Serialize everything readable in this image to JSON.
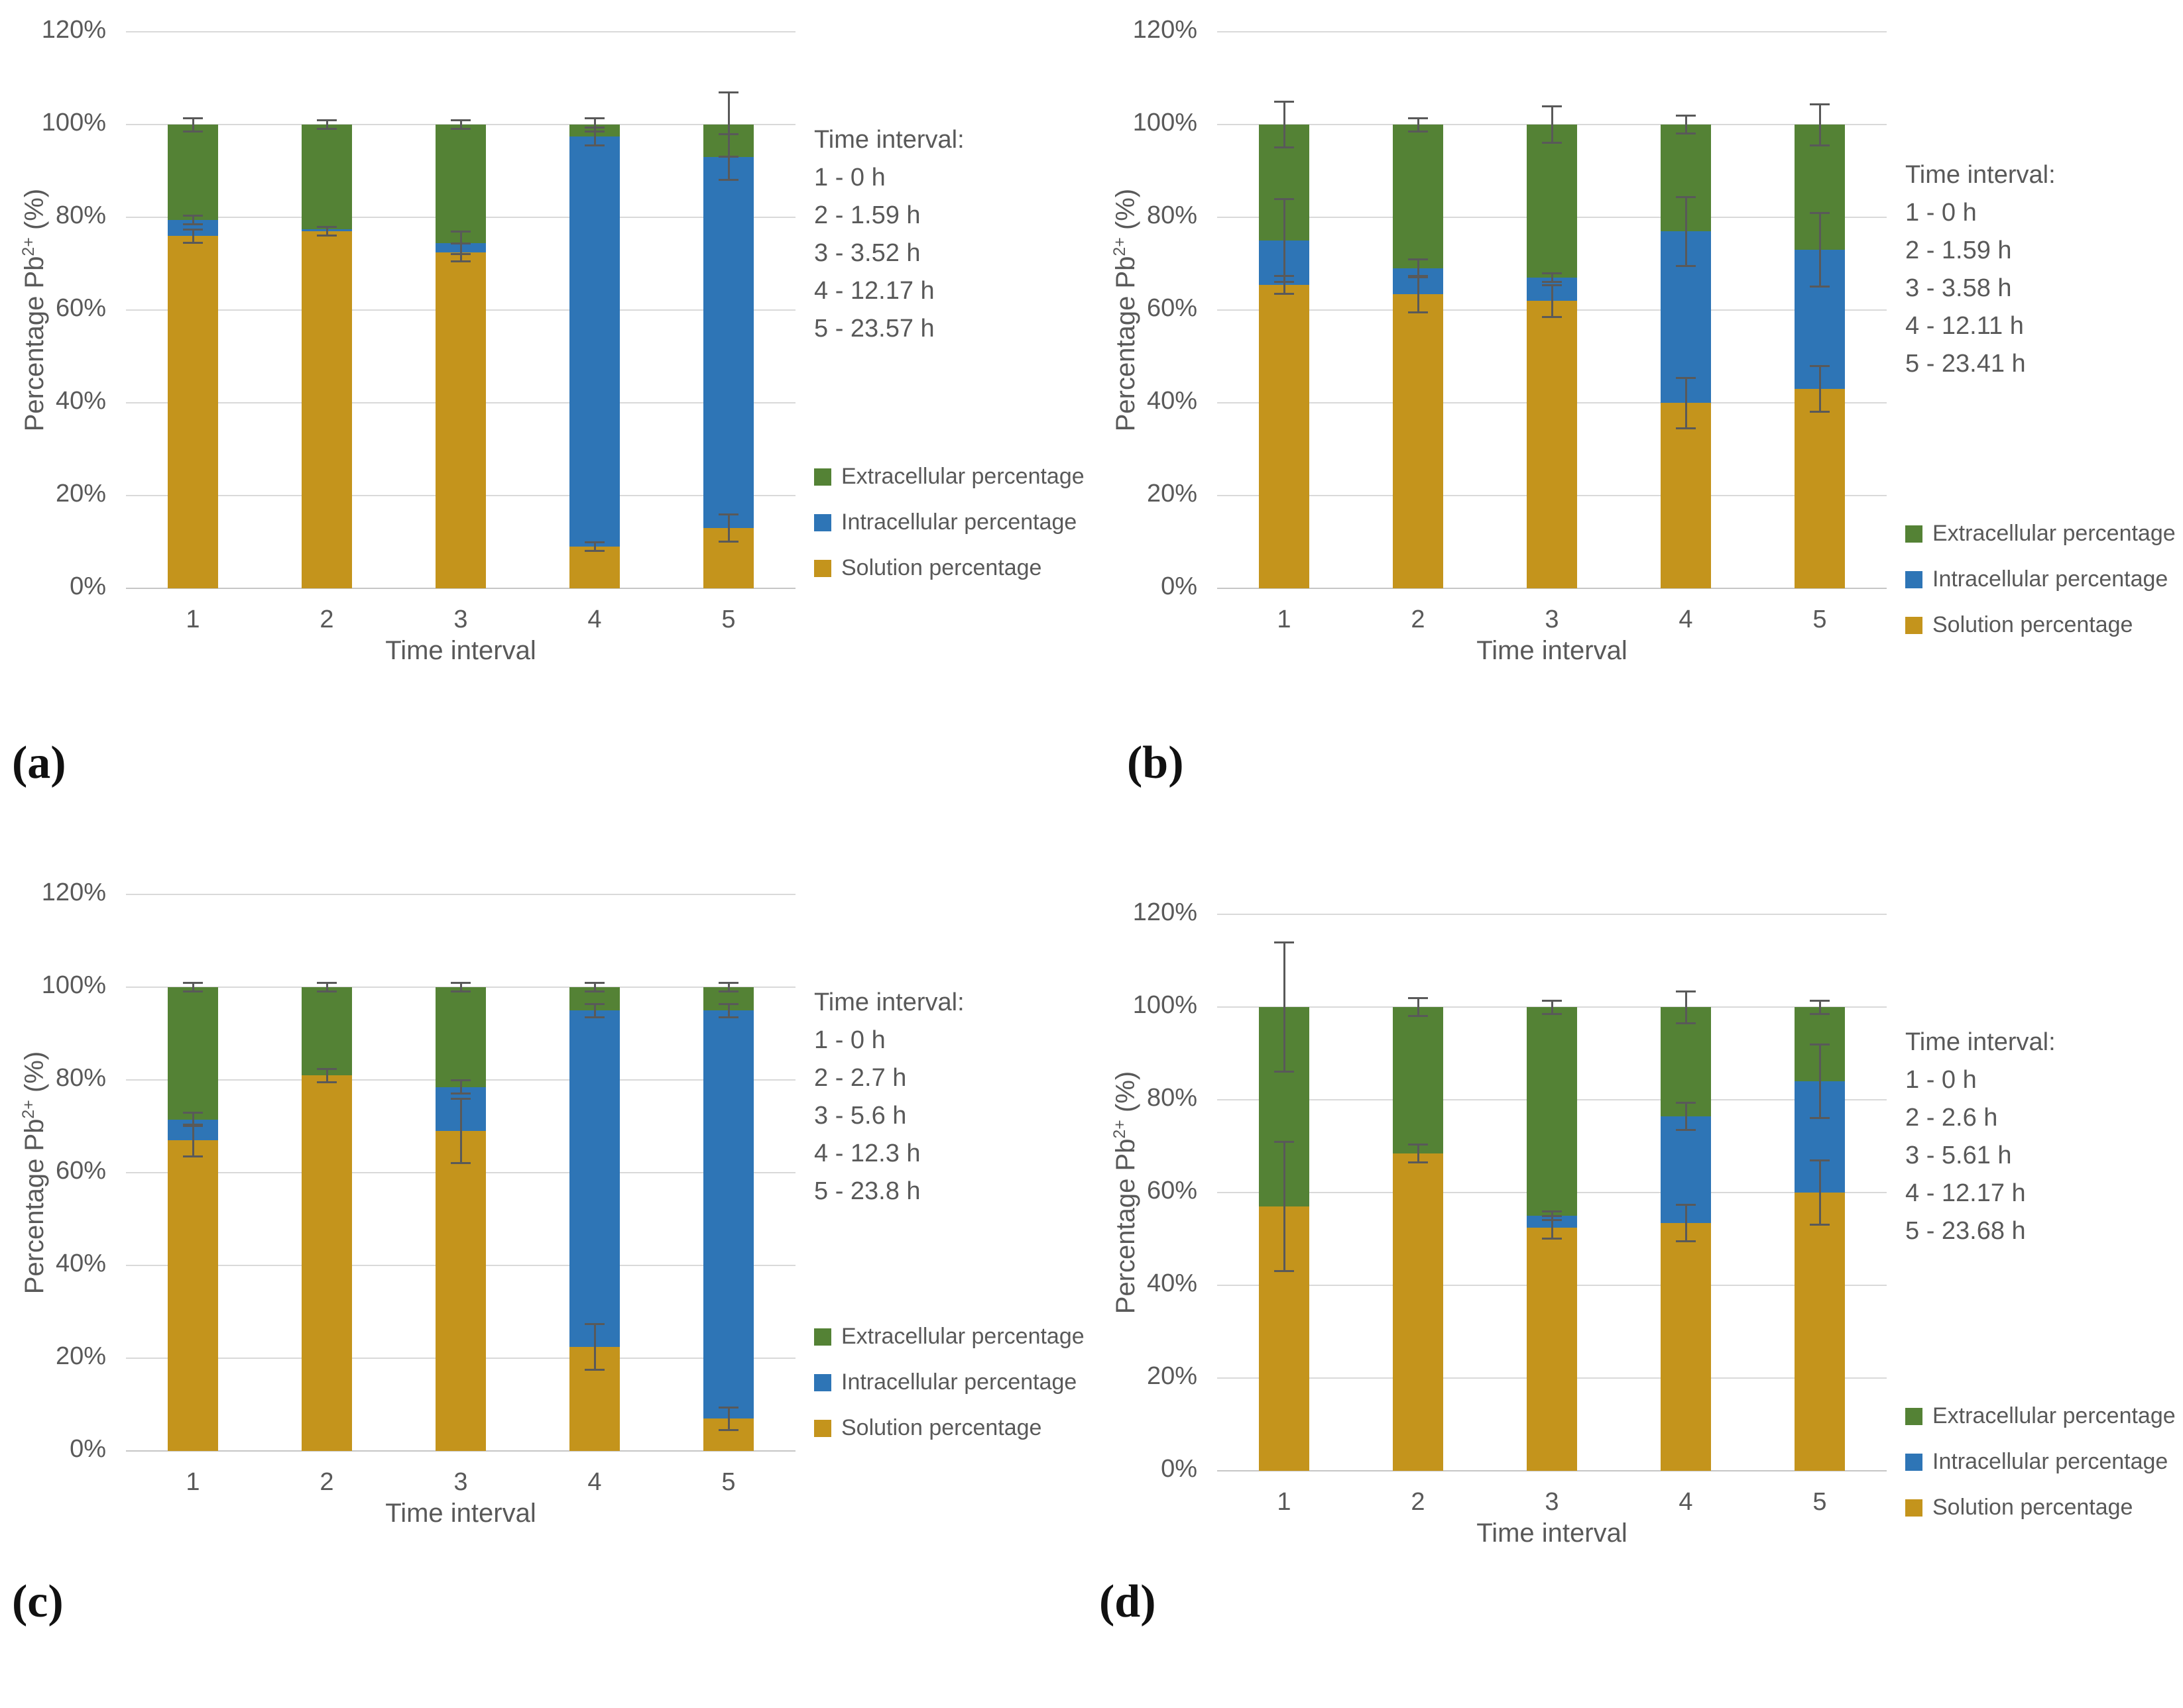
{
  "figure_colors": {
    "extracellular": "#548235",
    "intracellular": "#2e75b6",
    "solution": "#c4941c",
    "text": "#595959",
    "gridline": "#d9d9d9",
    "error_bar": "#595959"
  },
  "chart_data": [
    {
      "panel_letter": "(a)",
      "type": "bar",
      "stacked": true,
      "grid": true,
      "legend_position": "right",
      "xlabel": "Time interval",
      "ylabel": {
        "pre": "Percentage Pb",
        "sup": "2+",
        "post": " (%)"
      },
      "ylim": [
        0,
        120
      ],
      "yticks": [
        "0%",
        "20%",
        "40%",
        "60%",
        "80%",
        "100%",
        "120%"
      ],
      "categories": [
        "1",
        "2",
        "3",
        "4",
        "5"
      ],
      "series": [
        {
          "name": "Solution percentage",
          "color": "#c4941c",
          "values": [
            76,
            77,
            72.5,
            9,
            13
          ]
        },
        {
          "name": "Intracellular percentage",
          "color": "#2e75b6",
          "values": [
            3.5,
            0.5,
            2,
            88.5,
            80
          ]
        },
        {
          "name": "Extracellular percentage",
          "color": "#548235",
          "values": [
            20.5,
            22.5,
            25.5,
            2.5,
            7
          ]
        }
      ],
      "error_bars": [
        {
          "category": "1",
          "at": 76,
          "minus": 1.5,
          "plus": 1.5
        },
        {
          "category": "1",
          "at": 79.5,
          "minus": 1,
          "plus": 1
        },
        {
          "category": "1",
          "at": 100,
          "minus": 1.5,
          "plus": 1.5
        },
        {
          "category": "2",
          "at": 77,
          "minus": 1,
          "plus": 1
        },
        {
          "category": "2",
          "at": 100,
          "minus": 1,
          "plus": 1
        },
        {
          "category": "3",
          "at": 72.5,
          "minus": 2,
          "plus": 2
        },
        {
          "category": "3",
          "at": 74.5,
          "minus": 2.5,
          "plus": 2.5
        },
        {
          "category": "3",
          "at": 100,
          "minus": 1,
          "plus": 1
        },
        {
          "category": "4",
          "at": 9,
          "minus": 1,
          "plus": 1
        },
        {
          "category": "4",
          "at": 97.5,
          "minus": 2,
          "plus": 2
        },
        {
          "category": "4",
          "at": 100,
          "minus": 1.5,
          "plus": 1.5
        },
        {
          "category": "5",
          "at": 13,
          "minus": 3,
          "plus": 3
        },
        {
          "category": "5",
          "at": 93,
          "minus": 5,
          "plus": 5
        },
        {
          "category": "5",
          "at": 100,
          "minus": 7,
          "plus": 7
        }
      ],
      "note": {
        "title": "Time interval:",
        "lines": [
          "1 - 0 h",
          "2 - 1.59 h",
          "3 - 3.52 h",
          "4 - 12.17 h",
          "5 - 23.57 h"
        ]
      },
      "legend": [
        "Extracellular percentage",
        "Intracellular percentage",
        "Solution percentage"
      ]
    },
    {
      "panel_letter": "(b)",
      "type": "bar",
      "stacked": true,
      "grid": true,
      "legend_position": "right",
      "xlabel": "Time interval",
      "ylabel": {
        "pre": "Percentage Pb",
        "sup": "2+",
        "post": " (%)"
      },
      "ylim": [
        0,
        120
      ],
      "yticks": [
        "0%",
        "20%",
        "40%",
        "60%",
        "80%",
        "100%",
        "120%"
      ],
      "categories": [
        "1",
        "2",
        "3",
        "4",
        "5"
      ],
      "series": [
        {
          "name": "Solution percentage",
          "color": "#c4941c",
          "values": [
            65.5,
            63.5,
            62,
            40,
            43
          ]
        },
        {
          "name": "Intracellular percentage",
          "color": "#2e75b6",
          "values": [
            9.5,
            5.5,
            5,
            37,
            30
          ]
        },
        {
          "name": "Extracellular percentage",
          "color": "#548235",
          "values": [
            25,
            31,
            33,
            23,
            27
          ]
        }
      ],
      "error_bars": [
        {
          "category": "1",
          "at": 65.5,
          "minus": 2,
          "plus": 2
        },
        {
          "category": "1",
          "at": 75,
          "minus": 9,
          "plus": 9
        },
        {
          "category": "1",
          "at": 100,
          "minus": 5,
          "plus": 5
        },
        {
          "category": "2",
          "at": 63.5,
          "minus": 4,
          "plus": 4
        },
        {
          "category": "2",
          "at": 69,
          "minus": 2,
          "plus": 2
        },
        {
          "category": "2",
          "at": 100,
          "minus": 1.5,
          "plus": 1.5
        },
        {
          "category": "3",
          "at": 62,
          "minus": 3.5,
          "plus": 3.5
        },
        {
          "category": "3",
          "at": 67,
          "minus": 1,
          "plus": 1
        },
        {
          "category": "3",
          "at": 100,
          "minus": 4,
          "plus": 4
        },
        {
          "category": "4",
          "at": 40,
          "minus": 5.5,
          "plus": 5.5
        },
        {
          "category": "4",
          "at": 77,
          "minus": 7.5,
          "plus": 7.5
        },
        {
          "category": "4",
          "at": 100,
          "minus": 2,
          "plus": 2
        },
        {
          "category": "5",
          "at": 43,
          "minus": 5,
          "plus": 5
        },
        {
          "category": "5",
          "at": 73,
          "minus": 8,
          "plus": 8
        },
        {
          "category": "5",
          "at": 100,
          "minus": 4.5,
          "plus": 4.5
        }
      ],
      "note": {
        "title": "Time interval:",
        "lines": [
          "1 - 0 h",
          "2 - 1.59 h",
          "3 - 3.58 h",
          "4 - 12.11 h",
          "5 - 23.41 h"
        ]
      },
      "legend": [
        "Extracellular percentage",
        "Intracellular percentage",
        "Solution percentage"
      ]
    },
    {
      "panel_letter": "(c)",
      "type": "bar",
      "stacked": true,
      "grid": true,
      "legend_position": "right",
      "xlabel": "Time interval",
      "ylabel": {
        "pre": "Percentage Pb",
        "sup": "2+",
        "post": " (%)"
      },
      "ylim": [
        0,
        120
      ],
      "yticks": [
        "0%",
        "20%",
        "40%",
        "60%",
        "80%",
        "100%",
        "120%"
      ],
      "categories": [
        "1",
        "2",
        "3",
        "4",
        "5"
      ],
      "series": [
        {
          "name": "Solution percentage",
          "color": "#c4941c",
          "values": [
            67,
            81,
            69,
            22.5,
            7
          ]
        },
        {
          "name": "Intracellular percentage",
          "color": "#2e75b6",
          "values": [
            4.5,
            0,
            9.5,
            72.5,
            88
          ]
        },
        {
          "name": "Extracellular percentage",
          "color": "#548235",
          "values": [
            28.5,
            19,
            21.5,
            5,
            5
          ]
        }
      ],
      "error_bars": [
        {
          "category": "1",
          "at": 67,
          "minus": 3.5,
          "plus": 3.5
        },
        {
          "category": "1",
          "at": 71.5,
          "minus": 1.5,
          "plus": 1.5
        },
        {
          "category": "1",
          "at": 100,
          "minus": 1,
          "plus": 1
        },
        {
          "category": "2",
          "at": 81,
          "minus": 1.5,
          "plus": 1.5
        },
        {
          "category": "2",
          "at": 100,
          "minus": 1,
          "plus": 1
        },
        {
          "category": "3",
          "at": 69,
          "minus": 7,
          "plus": 7
        },
        {
          "category": "3",
          "at": 78.5,
          "minus": 1.5,
          "plus": 1.5
        },
        {
          "category": "3",
          "at": 100,
          "minus": 1,
          "plus": 1
        },
        {
          "category": "4",
          "at": 22.5,
          "minus": 5,
          "plus": 5
        },
        {
          "category": "4",
          "at": 95,
          "minus": 1.5,
          "plus": 1.5
        },
        {
          "category": "4",
          "at": 100,
          "minus": 1,
          "plus": 1
        },
        {
          "category": "5",
          "at": 7,
          "minus": 2.5,
          "plus": 2.5
        },
        {
          "category": "5",
          "at": 95,
          "minus": 1.5,
          "plus": 1.5
        },
        {
          "category": "5",
          "at": 100,
          "minus": 1,
          "plus": 1
        }
      ],
      "note": {
        "title": "Time interval:",
        "lines": [
          "1 - 0 h",
          "2 - 2.7 h",
          "3 - 5.6 h",
          "4 - 12.3 h",
          "5 - 23.8 h"
        ]
      },
      "legend": [
        "Extracellular percentage",
        "Intracellular percentage",
        "Solution percentage"
      ]
    },
    {
      "panel_letter": "(d)",
      "type": "bar",
      "stacked": true,
      "grid": true,
      "legend_position": "right",
      "xlabel": "Time interval",
      "ylabel": {
        "pre": "Percentage Pb",
        "sup": "2+",
        "post": " (%)"
      },
      "ylim": [
        0,
        120
      ],
      "yticks": [
        "0%",
        "20%",
        "40%",
        "60%",
        "80%",
        "100%",
        "120%"
      ],
      "categories": [
        "1",
        "2",
        "3",
        "4",
        "5"
      ],
      "series": [
        {
          "name": "Solution percentage",
          "color": "#c4941c",
          "values": [
            57,
            68.5,
            52.5,
            53.5,
            60
          ]
        },
        {
          "name": "Intracellular percentage",
          "color": "#2e75b6",
          "values": [
            0,
            0,
            2.5,
            23,
            24
          ]
        },
        {
          "name": "Extracellular percentage",
          "color": "#548235",
          "values": [
            43,
            31.5,
            45,
            23.5,
            16
          ]
        }
      ],
      "error_bars": [
        {
          "category": "1",
          "at": 57,
          "minus": 14,
          "plus": 14
        },
        {
          "category": "1",
          "at": 100,
          "minus": 14,
          "plus": 14
        },
        {
          "category": "2",
          "at": 68.5,
          "minus": 2,
          "plus": 2
        },
        {
          "category": "2",
          "at": 100,
          "minus": 2,
          "plus": 2
        },
        {
          "category": "3",
          "at": 52.5,
          "minus": 2.5,
          "plus": 2.5
        },
        {
          "category": "3",
          "at": 55,
          "minus": 1,
          "plus": 1
        },
        {
          "category": "3",
          "at": 100,
          "minus": 1.5,
          "plus": 1.5
        },
        {
          "category": "4",
          "at": 53.5,
          "minus": 4,
          "plus": 4
        },
        {
          "category": "4",
          "at": 76.5,
          "minus": 3,
          "plus": 3
        },
        {
          "category": "4",
          "at": 100,
          "minus": 3.5,
          "plus": 3.5
        },
        {
          "category": "5",
          "at": 60,
          "minus": 7,
          "plus": 7
        },
        {
          "category": "5",
          "at": 84,
          "minus": 8,
          "plus": 8
        },
        {
          "category": "5",
          "at": 100,
          "minus": 1.5,
          "plus": 1.5
        }
      ],
      "note": {
        "title": "Time interval:",
        "lines": [
          "1 - 0 h",
          "2 - 2.6 h",
          "3 - 5.61 h",
          "4 - 12.17 h",
          "5 - 23.68 h"
        ]
      },
      "legend": [
        "Extracellular percentage",
        "Intracellular percentage",
        "Solution percentage"
      ]
    }
  ]
}
